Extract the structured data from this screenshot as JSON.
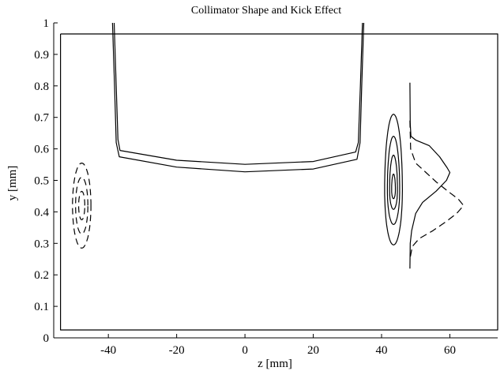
{
  "chart_data": {
    "type": "line",
    "title": "Collimator Shape and Kick Effect",
    "xlabel": "z [mm]",
    "ylabel": "y [mm]",
    "xlim": [
      -56,
      74
    ],
    "ylim": [
      0,
      1
    ],
    "x_ticks": [
      {
        "value": -40,
        "label": "-40"
      },
      {
        "value": -20,
        "label": "-20"
      },
      {
        "value": 0,
        "label": "0"
      },
      {
        "value": 20,
        "label": "20"
      },
      {
        "value": 40,
        "label": "40"
      },
      {
        "value": 60,
        "label": "60"
      }
    ],
    "y_ticks": [
      {
        "value": 0,
        "label": "0"
      },
      {
        "value": 0.1,
        "label": "0.1"
      },
      {
        "value": 0.2,
        "label": "0.2"
      },
      {
        "value": 0.3,
        "label": "0.3"
      },
      {
        "value": 0.4,
        "label": "0.4"
      },
      {
        "value": 0.5,
        "label": "0.5"
      },
      {
        "value": 0.6,
        "label": "0.6"
      },
      {
        "value": 0.7,
        "label": "0.7"
      },
      {
        "value": 0.8,
        "label": "0.8"
      },
      {
        "value": 0.9,
        "label": "0.9"
      },
      {
        "value": 1,
        "label": "1"
      }
    ],
    "grid": false,
    "series": [
      {
        "style": "solid",
        "points": [
          [
            -54,
            0.965
          ],
          [
            74,
            0.965
          ],
          [
            74,
            0.025
          ],
          [
            -54,
            0.025
          ],
          [
            -54,
            0.965
          ]
        ]
      },
      {
        "style": "solid",
        "points": [
          [
            -38.3,
            1.0
          ],
          [
            -37.7,
            0.8
          ],
          [
            -37.2,
            0.63
          ],
          [
            -36.6,
            0.595
          ],
          [
            -20,
            0.564
          ],
          [
            0,
            0.551
          ],
          [
            20,
            0.56
          ],
          [
            32.4,
            0.59
          ],
          [
            33.2,
            0.62
          ],
          [
            33.8,
            0.8
          ],
          [
            34.4,
            1.0
          ]
        ]
      },
      {
        "style": "solid",
        "points": [
          [
            -38.8,
            1.0
          ],
          [
            -38.2,
            0.8
          ],
          [
            -37.7,
            0.62
          ],
          [
            -36.8,
            0.575
          ],
          [
            -20,
            0.542
          ],
          [
            0,
            0.527
          ],
          [
            20,
            0.536
          ],
          [
            32.8,
            0.567
          ],
          [
            33.7,
            0.62
          ],
          [
            34.2,
            0.8
          ],
          [
            34.8,
            1.0
          ]
        ]
      },
      {
        "style": "solid",
        "points": [
          [
            48.3,
            0.81
          ],
          [
            48.4,
            0.68
          ],
          [
            48.6,
            0.64
          ],
          [
            50,
            0.628
          ],
          [
            54,
            0.61
          ],
          [
            57,
            0.575
          ],
          [
            59.2,
            0.54
          ],
          [
            60,
            0.525
          ],
          [
            59,
            0.5
          ],
          [
            56,
            0.466
          ],
          [
            52,
            0.43
          ],
          [
            50,
            0.395
          ],
          [
            48.8,
            0.34
          ],
          [
            48.4,
            0.3
          ],
          [
            48.3,
            0.22
          ]
        ]
      },
      {
        "style": "dashed",
        "points": [
          [
            48.3,
            0.69
          ],
          [
            48.5,
            0.6
          ],
          [
            50,
            0.555
          ],
          [
            53,
            0.525
          ],
          [
            56,
            0.495
          ],
          [
            59.5,
            0.465
          ],
          [
            62.5,
            0.44
          ],
          [
            64,
            0.42
          ],
          [
            62,
            0.395
          ],
          [
            59,
            0.37
          ],
          [
            55,
            0.34
          ],
          [
            51,
            0.315
          ],
          [
            49,
            0.29
          ],
          [
            48.3,
            0.25
          ]
        ]
      }
    ],
    "contours": [
      {
        "style": "solid",
        "center": [
          43.5,
          0.47
        ],
        "rx": 2.6,
        "ry_top": 0.24,
        "ry_bottom": 0.175
      },
      {
        "style": "solid",
        "center": [
          43.5,
          0.47
        ],
        "rx": 1.8,
        "ry_top": 0.17,
        "ry_bottom": 0.11
      },
      {
        "style": "solid",
        "center": [
          43.5,
          0.47
        ],
        "rx": 1.15,
        "ry_top": 0.11,
        "ry_bottom": 0.062
      },
      {
        "style": "solid",
        "center": [
          43.5,
          0.47
        ],
        "rx": 0.55,
        "ry_top": 0.05,
        "ry_bottom": 0.028
      },
      {
        "style": "dashed",
        "center": [
          -47.8,
          0.42
        ],
        "rx": 2.7,
        "ry_top": 0.135,
        "ry_bottom": 0.135
      },
      {
        "style": "dashed",
        "center": [
          -47.8,
          0.42
        ],
        "rx": 1.8,
        "ry_top": 0.09,
        "ry_bottom": 0.09
      },
      {
        "style": "dashed",
        "center": [
          -47.8,
          0.42
        ],
        "rx": 0.9,
        "ry_top": 0.045,
        "ry_bottom": 0.045
      }
    ]
  }
}
